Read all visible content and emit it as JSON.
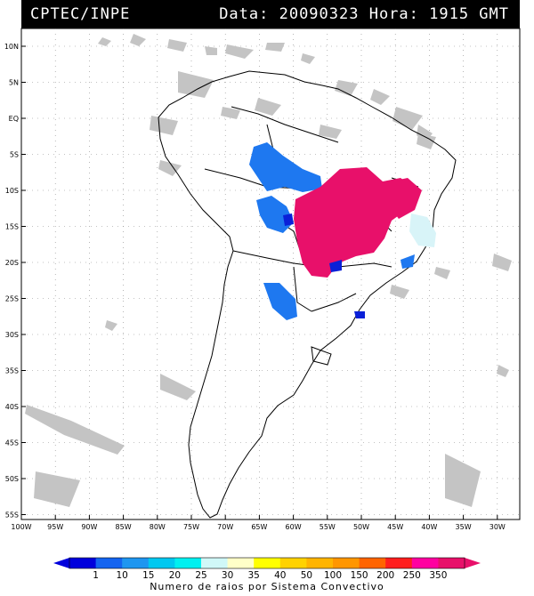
{
  "header": {
    "source": "CPTEC/INPE",
    "datetime": "Data: 20090323 Hora: 1915 GMT"
  },
  "map": {
    "lat_labels": [
      "10N",
      "5N",
      "EQ",
      "5S",
      "10S",
      "15S",
      "20S",
      "25S",
      "30S",
      "35S",
      "40S",
      "45S",
      "50S",
      "55S"
    ],
    "lon_labels": [
      "100W",
      "95W",
      "90W",
      "85W",
      "80W",
      "75W",
      "70W",
      "65W",
      "60W",
      "55W",
      "50W",
      "45W",
      "40W",
      "35W",
      "30W"
    ],
    "colors": {
      "cloud": "#c0c0c0",
      "coast": "#000000",
      "grid": "#666666",
      "lightning_low": "#1e78f0",
      "lightning_high": "#e8106a",
      "lightning_dark": "#0a20d8",
      "lightning_pale": "#d8f4f8"
    }
  },
  "legend": {
    "values": [
      "1",
      "10",
      "15",
      "20",
      "25",
      "30",
      "35",
      "40",
      "50",
      "100",
      "150",
      "200",
      "250",
      "350"
    ],
    "colors": [
      "#0000dc",
      "#1464f0",
      "#1e96f0",
      "#00c8f0",
      "#00f0f0",
      "#d0f8f8",
      "#ffffc8",
      "#ffff00",
      "#ffd200",
      "#ffb400",
      "#ff9600",
      "#ff6400",
      "#ff1e1e",
      "#ff00a0",
      "#e8106a"
    ],
    "caption": "Numero de raios por Sistema Convectivo"
  }
}
